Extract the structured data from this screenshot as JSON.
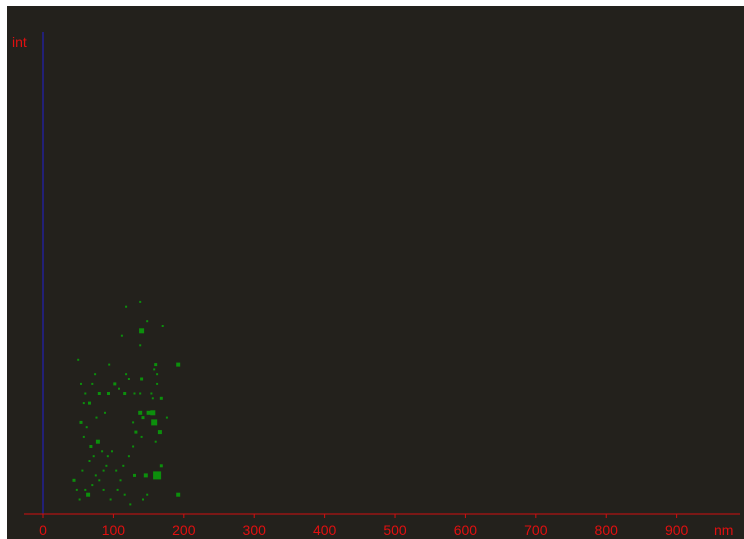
{
  "chart_data": {
    "type": "scatter",
    "title": "",
    "xlabel": "nm",
    "ylabel": "int",
    "xlim": [
      -27,
      990
    ],
    "ylim": [
      0,
      1
    ],
    "x_ticks": [
      "0",
      "100",
      "200",
      "300",
      "400",
      "500",
      "600",
      "700",
      "800",
      "900"
    ],
    "grid": false,
    "colors": {
      "background": "#23211c",
      "marker": "#0c8f0c",
      "x_axis": "#d01010",
      "y_axis": "#2020d0",
      "text": "#e01010"
    },
    "points": [
      {
        "x": 52,
        "y": 0.03,
        "s": 2
      },
      {
        "x": 60,
        "y": 0.05,
        "s": 2
      },
      {
        "x": 64,
        "y": 0.04,
        "s": 4
      },
      {
        "x": 70,
        "y": 0.06,
        "s": 2
      },
      {
        "x": 44,
        "y": 0.07,
        "s": 3
      },
      {
        "x": 48,
        "y": 0.05,
        "s": 2
      },
      {
        "x": 56,
        "y": 0.09,
        "s": 2
      },
      {
        "x": 75,
        "y": 0.08,
        "s": 2
      },
      {
        "x": 80,
        "y": 0.07,
        "s": 2
      },
      {
        "x": 86,
        "y": 0.09,
        "s": 2
      },
      {
        "x": 90,
        "y": 0.1,
        "s": 2
      },
      {
        "x": 66,
        "y": 0.11,
        "s": 2
      },
      {
        "x": 72,
        "y": 0.12,
        "s": 2
      },
      {
        "x": 68,
        "y": 0.14,
        "s": 3
      },
      {
        "x": 78,
        "y": 0.15,
        "s": 4
      },
      {
        "x": 58,
        "y": 0.16,
        "s": 2
      },
      {
        "x": 84,
        "y": 0.13,
        "s": 2
      },
      {
        "x": 92,
        "y": 0.12,
        "s": 2
      },
      {
        "x": 98,
        "y": 0.13,
        "s": 2
      },
      {
        "x": 62,
        "y": 0.18,
        "s": 2
      },
      {
        "x": 54,
        "y": 0.19,
        "s": 3
      },
      {
        "x": 76,
        "y": 0.2,
        "s": 2
      },
      {
        "x": 88,
        "y": 0.21,
        "s": 2
      },
      {
        "x": 58,
        "y": 0.23,
        "s": 2
      },
      {
        "x": 66,
        "y": 0.23,
        "s": 3
      },
      {
        "x": 60,
        "y": 0.25,
        "s": 2
      },
      {
        "x": 80,
        "y": 0.25,
        "s": 3
      },
      {
        "x": 93,
        "y": 0.25,
        "s": 3
      },
      {
        "x": 70,
        "y": 0.27,
        "s": 2
      },
      {
        "x": 74,
        "y": 0.29,
        "s": 2
      },
      {
        "x": 54,
        "y": 0.27,
        "s": 2
      },
      {
        "x": 50,
        "y": 0.32,
        "s": 2
      },
      {
        "x": 94,
        "y": 0.31,
        "s": 2
      },
      {
        "x": 106,
        "y": 0.05,
        "s": 2
      },
      {
        "x": 110,
        "y": 0.07,
        "s": 2
      },
      {
        "x": 116,
        "y": 0.04,
        "s": 2
      },
      {
        "x": 114,
        "y": 0.1,
        "s": 2
      },
      {
        "x": 122,
        "y": 0.12,
        "s": 2
      },
      {
        "x": 130,
        "y": 0.08,
        "s": 3
      },
      {
        "x": 128,
        "y": 0.14,
        "s": 2
      },
      {
        "x": 132,
        "y": 0.17,
        "s": 3
      },
      {
        "x": 128,
        "y": 0.19,
        "s": 2
      },
      {
        "x": 138,
        "y": 0.21,
        "s": 4
      },
      {
        "x": 142,
        "y": 0.2,
        "s": 3
      },
      {
        "x": 140,
        "y": 0.16,
        "s": 2
      },
      {
        "x": 146,
        "y": 0.08,
        "s": 4
      },
      {
        "x": 150,
        "y": 0.21,
        "s": 4
      },
      {
        "x": 156,
        "y": 0.21,
        "s": 5
      },
      {
        "x": 158,
        "y": 0.19,
        "s": 6
      },
      {
        "x": 160,
        "y": 0.15,
        "s": 2
      },
      {
        "x": 162,
        "y": 0.08,
        "s": 8
      },
      {
        "x": 168,
        "y": 0.1,
        "s": 3
      },
      {
        "x": 166,
        "y": 0.17,
        "s": 4
      },
      {
        "x": 156,
        "y": 0.24,
        "s": 2
      },
      {
        "x": 168,
        "y": 0.24,
        "s": 3
      },
      {
        "x": 154,
        "y": 0.25,
        "s": 2
      },
      {
        "x": 162,
        "y": 0.27,
        "s": 2
      },
      {
        "x": 138,
        "y": 0.25,
        "s": 2
      },
      {
        "x": 140,
        "y": 0.28,
        "s": 3
      },
      {
        "x": 130,
        "y": 0.25,
        "s": 2
      },
      {
        "x": 122,
        "y": 0.28,
        "s": 2
      },
      {
        "x": 116,
        "y": 0.25,
        "s": 3
      },
      {
        "x": 108,
        "y": 0.26,
        "s": 2
      },
      {
        "x": 102,
        "y": 0.27,
        "s": 3
      },
      {
        "x": 118,
        "y": 0.29,
        "s": 2
      },
      {
        "x": 160,
        "y": 0.31,
        "s": 3
      },
      {
        "x": 158,
        "y": 0.3,
        "s": 2
      },
      {
        "x": 162,
        "y": 0.29,
        "s": 2
      },
      {
        "x": 176,
        "y": 0.2,
        "s": 2
      },
      {
        "x": 148,
        "y": 0.04,
        "s": 2
      },
      {
        "x": 142,
        "y": 0.03,
        "s": 2
      },
      {
        "x": 192,
        "y": 0.04,
        "s": 4
      },
      {
        "x": 192,
        "y": 0.31,
        "s": 4
      },
      {
        "x": 138,
        "y": 0.35,
        "s": 2
      },
      {
        "x": 112,
        "y": 0.37,
        "s": 2
      },
      {
        "x": 140,
        "y": 0.38,
        "s": 5
      },
      {
        "x": 170,
        "y": 0.39,
        "s": 2
      },
      {
        "x": 148,
        "y": 0.4,
        "s": 2
      },
      {
        "x": 118,
        "y": 0.43,
        "s": 2
      },
      {
        "x": 138,
        "y": 0.44,
        "s": 2
      },
      {
        "x": 124,
        "y": 0.02,
        "s": 2
      },
      {
        "x": 96,
        "y": 0.03,
        "s": 2
      },
      {
        "x": 104,
        "y": 0.09,
        "s": 2
      },
      {
        "x": 86,
        "y": 0.05,
        "s": 2
      }
    ]
  }
}
